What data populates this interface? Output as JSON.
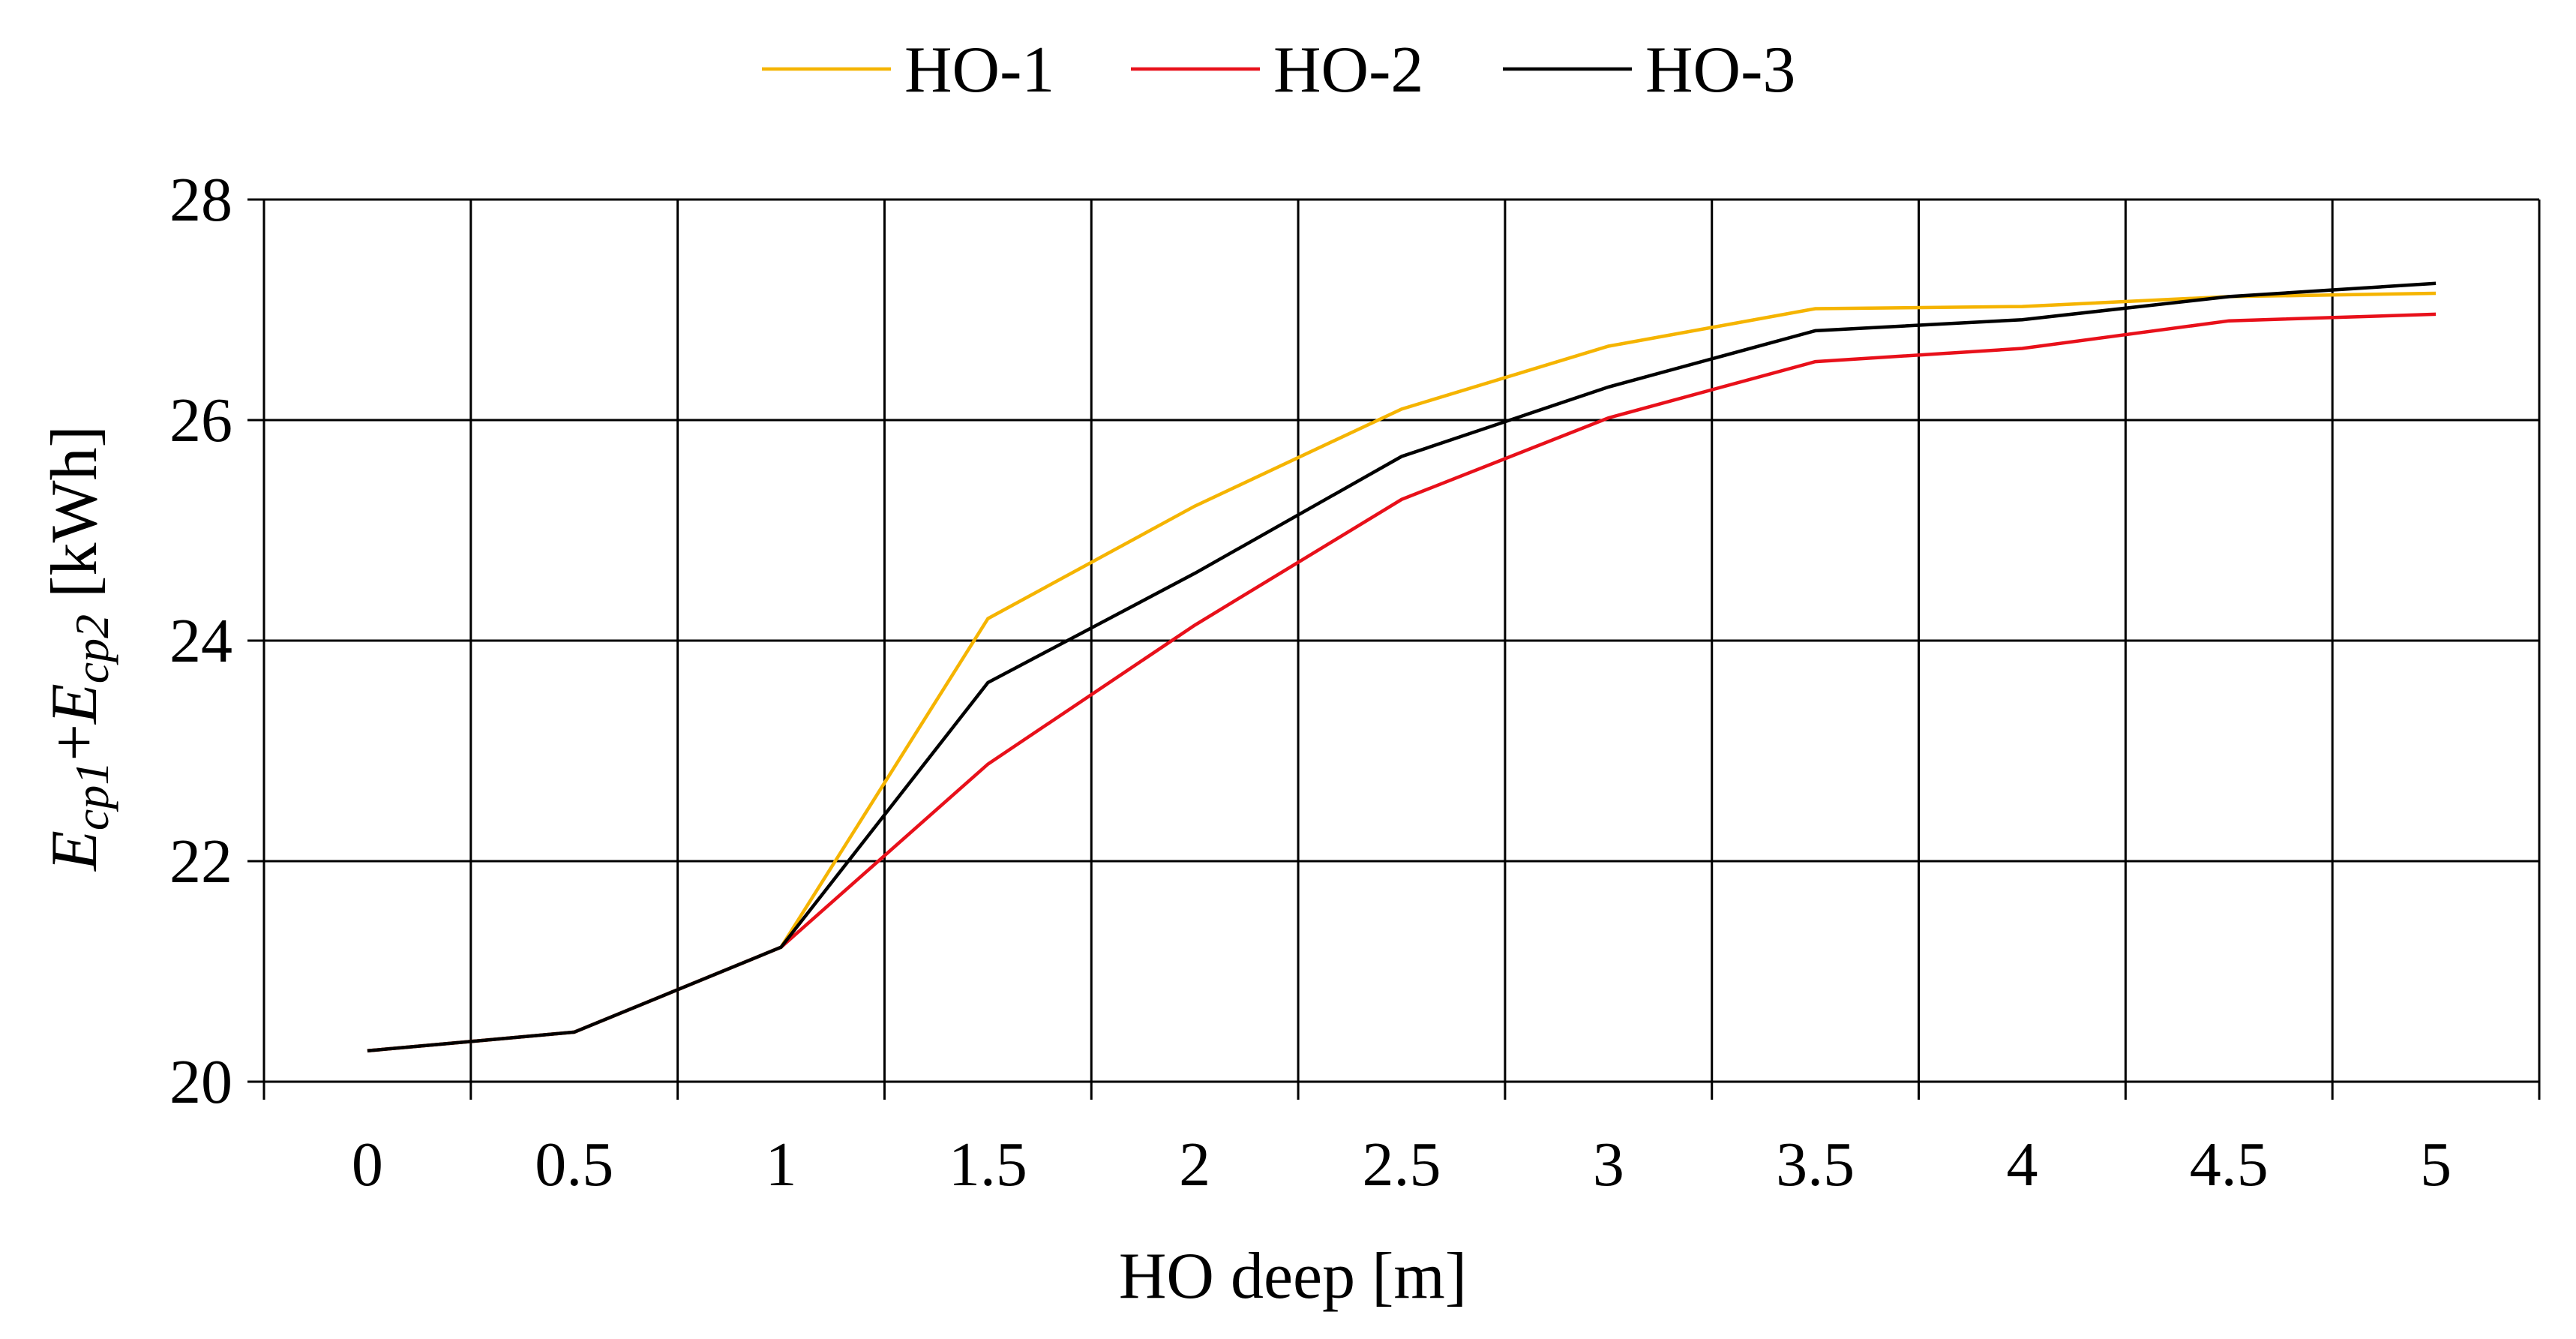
{
  "chart_data": {
    "type": "line",
    "title": "",
    "xlabel": "HO deep [m]",
    "ylabel": {
      "e1": "E",
      "sub1": "cp1",
      "plus": "+",
      "e2": "E",
      "sub2": "cp2",
      "unit": " [kWh]"
    },
    "x": [
      0,
      0.5,
      1,
      1.5,
      2,
      2.5,
      3,
      3.5,
      4,
      4.5,
      5
    ],
    "x_tick_labels": [
      "0",
      "0.5",
      "1",
      "1.5",
      "2",
      "2.5",
      "3",
      "3.5",
      "4",
      "4.5",
      "5"
    ],
    "y_ticks": [
      20,
      22,
      24,
      26,
      28
    ],
    "y_tick_labels": [
      "20",
      "22",
      "24",
      "26",
      "28"
    ],
    "ylim": [
      20,
      28
    ],
    "grid": true,
    "legend_position": "top-center",
    "series": [
      {
        "name": "HO-1",
        "color": "#F5B400",
        "values": [
          20.28,
          20.45,
          21.22,
          24.2,
          25.22,
          26.1,
          26.67,
          27.01,
          27.03,
          27.12,
          27.15
        ]
      },
      {
        "name": "HO-2",
        "color": "#E8101A",
        "values": [
          20.28,
          20.45,
          21.22,
          22.88,
          24.14,
          25.28,
          26.02,
          26.53,
          26.65,
          26.9,
          26.96
        ]
      },
      {
        "name": "HO-3",
        "color": "#000000",
        "values": [
          20.28,
          20.45,
          21.22,
          23.62,
          24.61,
          25.67,
          26.3,
          26.81,
          26.91,
          27.12,
          27.24
        ]
      }
    ]
  }
}
